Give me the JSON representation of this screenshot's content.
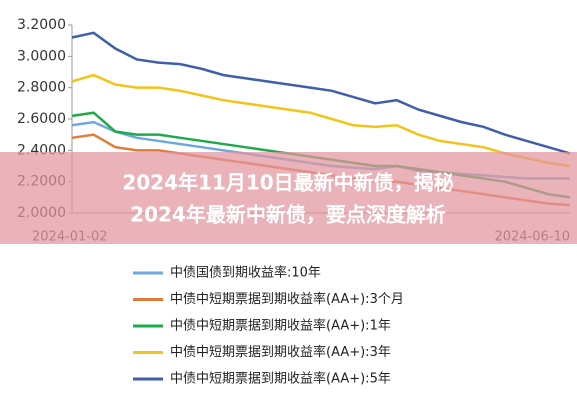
{
  "chart_data": {
    "type": "line",
    "categories": [
      "2024-01-02",
      null,
      null,
      null,
      null,
      null,
      null,
      null,
      null,
      null,
      null,
      null,
      null,
      null,
      null,
      null,
      null,
      null,
      null,
      null,
      null,
      null,
      null,
      "2024-06-10"
    ],
    "series": [
      {
        "name": "中债国债到期收益率:10年",
        "color": "#6fa8dc",
        "values": [
          2.56,
          2.58,
          2.52,
          2.48,
          2.46,
          2.44,
          2.42,
          2.4,
          2.38,
          2.36,
          2.34,
          2.32,
          2.3,
          2.29,
          2.28,
          2.3,
          2.27,
          2.26,
          2.25,
          2.24,
          2.23,
          2.22,
          2.22,
          2.22
        ]
      },
      {
        "name": "中债中短期票据到期收益率(AA+):3个月",
        "color": "#e07b39",
        "values": [
          2.48,
          2.5,
          2.42,
          2.4,
          2.4,
          2.38,
          2.36,
          2.34,
          2.32,
          2.3,
          2.28,
          2.26,
          2.24,
          2.22,
          2.2,
          2.2,
          2.18,
          2.16,
          2.14,
          2.12,
          2.1,
          2.08,
          2.06,
          2.05
        ]
      },
      {
        "name": "中债中短期票据到期收益率(AA+):1年",
        "color": "#1faa4a",
        "values": [
          2.62,
          2.64,
          2.52,
          2.5,
          2.5,
          2.48,
          2.46,
          2.44,
          2.42,
          2.4,
          2.38,
          2.36,
          2.34,
          2.32,
          2.3,
          2.3,
          2.28,
          2.26,
          2.24,
          2.22,
          2.2,
          2.16,
          2.12,
          2.1
        ]
      },
      {
        "name": "中债中短期票据到期收益率(AA+):3年",
        "color": "#f2c318",
        "values": [
          2.84,
          2.88,
          2.82,
          2.8,
          2.8,
          2.78,
          2.75,
          2.72,
          2.7,
          2.68,
          2.66,
          2.64,
          2.6,
          2.56,
          2.55,
          2.56,
          2.5,
          2.46,
          2.44,
          2.42,
          2.38,
          2.35,
          2.32,
          2.3
        ]
      },
      {
        "name": "中债中短期票据到期收益率(AA+):5年",
        "color": "#3f5fa8",
        "values": [
          3.12,
          3.15,
          3.05,
          2.98,
          2.96,
          2.95,
          2.92,
          2.88,
          2.86,
          2.84,
          2.82,
          2.8,
          2.78,
          2.74,
          2.7,
          2.72,
          2.66,
          2.62,
          2.58,
          2.55,
          2.5,
          2.46,
          2.42,
          2.38
        ]
      }
    ],
    "ylim": [
      2.0,
      3.2
    ],
    "yticks": [
      {
        "value": 2.0,
        "label": "2.0000"
      },
      {
        "value": 2.2,
        "label": "2.2000"
      },
      {
        "value": 2.4,
        "label": "2.4000"
      },
      {
        "value": 2.6,
        "label": "2.6000"
      },
      {
        "value": 2.8,
        "label": "2.8000"
      },
      {
        "value": 3.0,
        "label": "3.0000"
      },
      {
        "value": 3.2,
        "label": "3.2000"
      }
    ],
    "annotations": [
      "2024年11月10日最新中新债，揭秘",
      "2024年最新中新债，要点深度解析"
    ]
  }
}
